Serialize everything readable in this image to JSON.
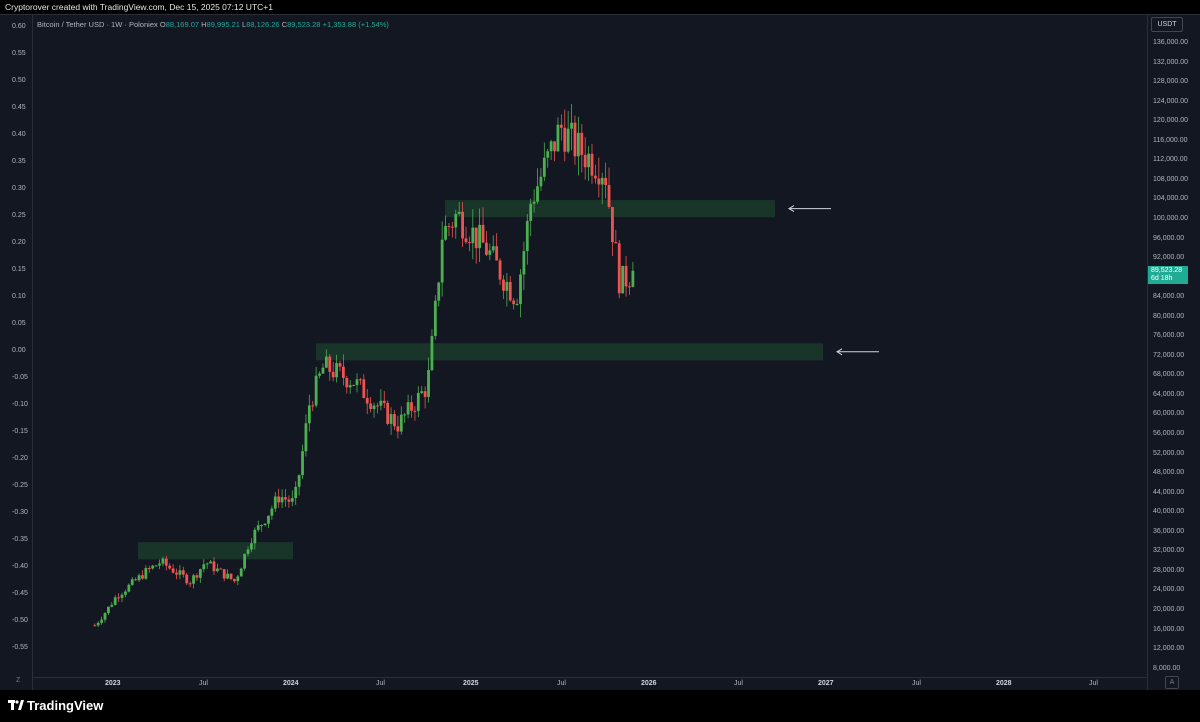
{
  "header": {
    "credit": "Cryptorover created with TradingView.com, Dec 15, 2025 07:12 UTC+1"
  },
  "legend": {
    "symbol": "Bitcoin / Tether USD · 1W · Poloniex",
    "o_label": "O",
    "o_value": "88,169.07",
    "h_label": "H",
    "h_value": "89,995.21",
    "l_label": "L",
    "l_value": "88,126.26",
    "c_label": "C",
    "c_value": "89,523.28",
    "change": "+1,353.88 (+1.54%)"
  },
  "price_axis": {
    "currency": "USDT",
    "current_price": "89,523.28",
    "countdown": "6d 18h",
    "labels": [
      "136,000.00",
      "132,000.00",
      "128,000.00",
      "124,000.00",
      "120,000.00",
      "116,000.00",
      "112,000.00",
      "108,000.00",
      "104,000.00",
      "100,000.00",
      "96,000.00",
      "92,000.00",
      "88,000.00",
      "84,000.00",
      "80,000.00",
      "76,000.00",
      "72,000.00",
      "68,000.00",
      "64,000.00",
      "60,000.00",
      "56,000.00",
      "52,000.00",
      "48,000.00",
      "44,000.00",
      "40,000.00",
      "36,000.00",
      "32,000.00",
      "28,000.00",
      "24,000.00",
      "20,000.00",
      "16,000.00",
      "12,000.00",
      "8,000.00"
    ]
  },
  "left_axis": {
    "labels": [
      "0.60",
      "0.55",
      "0.50",
      "0.45",
      "0.40",
      "0.35",
      "0.30",
      "0.25",
      "0.20",
      "0.15",
      "0.10",
      "0.05",
      "0.00",
      "-0.05",
      "-0.10",
      "-0.15",
      "-0.20",
      "-0.25",
      "-0.30",
      "-0.35",
      "-0.40",
      "-0.45",
      "-0.50",
      "-0.55"
    ]
  },
  "time_axis": {
    "labels": [
      {
        "text": "2023",
        "year": true
      },
      {
        "text": "Jul",
        "year": false
      },
      {
        "text": "2024",
        "year": true
      },
      {
        "text": "Jul",
        "year": false
      },
      {
        "text": "2025",
        "year": true
      },
      {
        "text": "Jul",
        "year": false
      },
      {
        "text": "2026",
        "year": true
      },
      {
        "text": "Jul",
        "year": false
      },
      {
        "text": "2027",
        "year": true
      },
      {
        "text": "Jul",
        "year": false
      },
      {
        "text": "2028",
        "year": true
      },
      {
        "text": "Jul",
        "year": false
      }
    ],
    "corner_left": "Z",
    "corner_right": "A"
  },
  "footer": {
    "brand": "TradingView"
  },
  "colors": {
    "up": "#26a69a",
    "up_bright": "#4caf50",
    "down": "#ef5350",
    "zone": "#1b3a2a",
    "background": "#131722"
  },
  "chart_data": {
    "type": "candlestick",
    "timeframe": "1W",
    "y_unit": "USDT",
    "ylim": [
      8000,
      136000
    ],
    "anchor_points": [
      {
        "date": "2022-12",
        "price": 17000
      },
      {
        "date": "2023-01",
        "price": 23000
      },
      {
        "date": "2023-03",
        "price": 28000
      },
      {
        "date": "2023-04",
        "price": 30000
      },
      {
        "date": "2023-06",
        "price": 26000
      },
      {
        "date": "2023-07",
        "price": 30000
      },
      {
        "date": "2023-09",
        "price": 26000
      },
      {
        "date": "2023-10",
        "price": 34500
      },
      {
        "date": "2023-12",
        "price": 43500
      },
      {
        "date": "2024-01",
        "price": 42000
      },
      {
        "date": "2024-02",
        "price": 62000
      },
      {
        "date": "2024-03",
        "price": 70000
      },
      {
        "date": "2024-05",
        "price": 67000
      },
      {
        "date": "2024-08",
        "price": 58000
      },
      {
        "date": "2024-10",
        "price": 66000
      },
      {
        "date": "2024-11",
        "price": 97000
      },
      {
        "date": "2024-12",
        "price": 101000
      },
      {
        "date": "2025-02",
        "price": 94000
      },
      {
        "date": "2025-04",
        "price": 84000
      },
      {
        "date": "2025-05",
        "price": 104000
      },
      {
        "date": "2025-07",
        "price": 119000
      },
      {
        "date": "2025-08",
        "price": 115000
      },
      {
        "date": "2025-10",
        "price": 110000
      },
      {
        "date": "2025-11",
        "price": 87000
      },
      {
        "date": "2025-12",
        "price": 89523.28
      }
    ],
    "zones": [
      {
        "name": "upper resistance zone",
        "price_low": 100500,
        "price_high": 104000,
        "marked_with_arrow": true
      },
      {
        "name": "support zone",
        "price_low": 71200,
        "price_high": 74700,
        "marked_with_arrow": true
      },
      {
        "name": "lower 2023 zone",
        "price_low": 30500,
        "price_high": 34000,
        "marked_with_arrow": false
      }
    ],
    "grid": false
  }
}
